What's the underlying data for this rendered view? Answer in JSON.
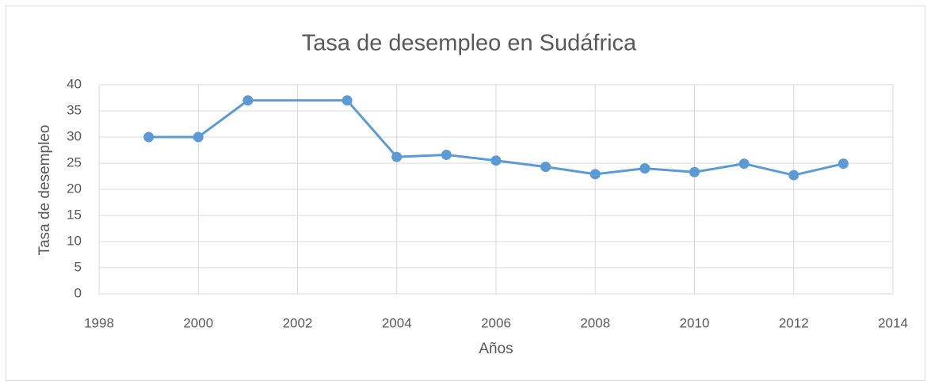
{
  "chart_data": {
    "type": "line",
    "title": "Tasa de desempleo en Sudáfrica",
    "x_label": "Años",
    "y_label": "Tasa de desempleo",
    "x": [
      1999,
      2000,
      2001,
      2003,
      2004,
      2005,
      2006,
      2007,
      2008,
      2009,
      2010,
      2011,
      2012,
      2013
    ],
    "series": [
      {
        "name": "Tasa de desempleo",
        "color": "#5b9bd5",
        "values": [
          30,
          30,
          37,
          37,
          26.2,
          26.6,
          25.5,
          24.3,
          22.9,
          24,
          23.3,
          24.9,
          22.7,
          24.9
        ]
      }
    ],
    "xlim": [
      1998,
      2014
    ],
    "xticks": [
      1998,
      2000,
      2002,
      2004,
      2006,
      2008,
      2010,
      2012,
      2014
    ],
    "ylim": [
      0,
      40
    ],
    "yticks": [
      0,
      5,
      10,
      15,
      20,
      25,
      30,
      35,
      40
    ],
    "grid": true
  }
}
